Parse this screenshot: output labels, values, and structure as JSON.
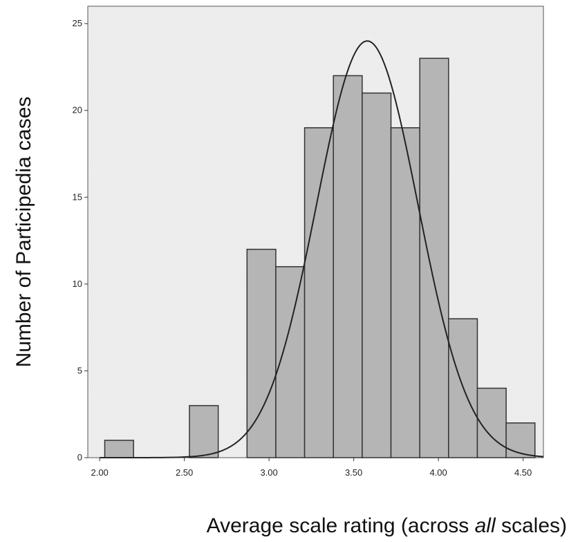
{
  "chart_data": {
    "type": "bar",
    "bin_width": 0.17,
    "bins": [
      {
        "x_start": 2.03,
        "x_end": 2.2,
        "count": 1
      },
      {
        "x_start": 2.53,
        "x_end": 2.7,
        "count": 3
      },
      {
        "x_start": 2.87,
        "x_end": 3.04,
        "count": 12
      },
      {
        "x_start": 3.04,
        "x_end": 3.21,
        "count": 11
      },
      {
        "x_start": 3.21,
        "x_end": 3.38,
        "count": 19
      },
      {
        "x_start": 3.38,
        "x_end": 3.55,
        "count": 22
      },
      {
        "x_start": 3.55,
        "x_end": 3.72,
        "count": 21
      },
      {
        "x_start": 3.72,
        "x_end": 3.89,
        "count": 19
      },
      {
        "x_start": 3.89,
        "x_end": 4.06,
        "count": 23
      },
      {
        "x_start": 4.06,
        "x_end": 4.23,
        "count": 8
      },
      {
        "x_start": 4.23,
        "x_end": 4.4,
        "count": 4
      },
      {
        "x_start": 4.4,
        "x_end": 4.57,
        "count": 2
      }
    ],
    "normal_curve": {
      "mean": 3.58,
      "sd": 0.3,
      "peak": 24
    },
    "xlim": [
      1.93,
      4.62
    ],
    "ylim": [
      0,
      26
    ],
    "x_ticks": [
      "2.00",
      "2.50",
      "3.00",
      "3.50",
      "4.00",
      "4.50"
    ],
    "y_ticks": [
      "0",
      "5",
      "10",
      "15",
      "20",
      "25"
    ],
    "xlabel_before": "Average scale rating (across ",
    "xlabel_italic": "all",
    "xlabel_after": " scales)",
    "ylabel": "Number of Participedia cases",
    "colors": {
      "plot_bg": "#ececec",
      "bar_fill": "#b5b5b5",
      "bar_stroke": "#333333",
      "curve": "#222222"
    }
  }
}
